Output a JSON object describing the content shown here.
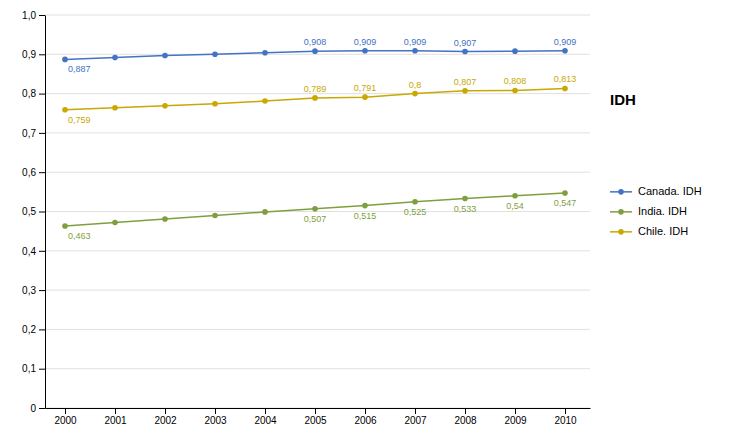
{
  "chart_data": {
    "type": "line",
    "ylabel": "IDH",
    "x": [
      2000,
      2001,
      2002,
      2003,
      2004,
      2005,
      2006,
      2007,
      2008,
      2009,
      2010
    ],
    "series": [
      {
        "name": "Canada. IDH",
        "color": "#4472C4",
        "marker": "circle",
        "values": [
          0.887,
          0.892,
          0.897,
          0.9,
          0.904,
          0.908,
          0.909,
          0.909,
          0.907,
          0.908,
          0.909
        ],
        "value_labels": [
          "0,887",
          null,
          null,
          null,
          null,
          "0,908",
          "0,909",
          "0,909",
          "0,907",
          null,
          "0,909"
        ]
      },
      {
        "name": "India. IDH",
        "color": "#7F9F3F",
        "marker": "circle",
        "values": [
          0.463,
          0.472,
          0.481,
          0.49,
          0.499,
          0.507,
          0.515,
          0.525,
          0.533,
          0.54,
          0.547
        ],
        "value_labels": [
          "0,463",
          null,
          null,
          null,
          null,
          "0,507",
          "0,515",
          "0,525",
          "0,533",
          "0,54",
          "0,547"
        ]
      },
      {
        "name": "Chile. IDH",
        "color": "#C9A800",
        "marker": "circle",
        "values": [
          0.759,
          0.764,
          0.769,
          0.774,
          0.781,
          0.789,
          0.791,
          0.8,
          0.807,
          0.808,
          0.813
        ],
        "value_labels": [
          "0,759",
          null,
          null,
          null,
          null,
          "0,789",
          "0,791",
          "0,8",
          "0,807",
          "0,808",
          "0,813"
        ]
      }
    ],
    "data_labels": true,
    "xlim": [
      1999.6,
      2010.5
    ],
    "xticks": [
      2000,
      2001,
      2002,
      2003,
      2004,
      2005,
      2006,
      2007,
      2008,
      2009,
      2010
    ],
    "ylim": [
      0,
      1.0
    ],
    "yticks": [
      0,
      {
        "value": 0.1,
        "label": "0,1"
      },
      {
        "value": 0.2,
        "label": "0,2"
      },
      {
        "value": 0.3,
        "label": "0,3"
      },
      {
        "value": 0.4,
        "label": "0,4"
      },
      {
        "value": 0.5,
        "label": "0,5"
      },
      {
        "value": 0.6,
        "label": "0,6"
      },
      {
        "value": 0.7,
        "label": "0,7"
      },
      {
        "value": 0.8,
        "label": "0,8"
      },
      {
        "value": 0.9,
        "label": "0,9"
      },
      {
        "value": 1,
        "label": "1,0"
      }
    ],
    "grid": true,
    "legend": "right"
  }
}
